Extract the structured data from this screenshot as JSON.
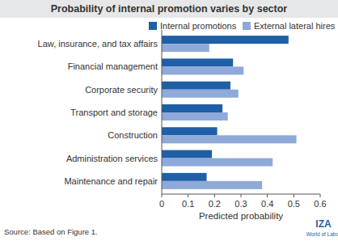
{
  "chart_data": {
    "type": "bar",
    "orientation": "horizontal",
    "title": "Probability of internal promotion varies by sector",
    "categories": [
      "Law, insurance, and tax affairs",
      "Financial management",
      "Corporate security",
      "Transport and storage",
      "Construction",
      "Administration services",
      "Maintenance and repair"
    ],
    "series": [
      {
        "name": "Internal promotions",
        "color": "#1f5fa6",
        "values": [
          0.48,
          0.27,
          0.26,
          0.23,
          0.21,
          0.19,
          0.17
        ]
      },
      {
        "name": "External lateral hires",
        "color": "#8fa9d9",
        "values": [
          0.18,
          0.31,
          0.29,
          0.25,
          0.51,
          0.42,
          0.38
        ]
      }
    ],
    "xlabel": "Predicted probability",
    "xlim": [
      0,
      0.6
    ],
    "xticks": [
      0,
      0.1,
      0.2,
      0.3,
      0.4,
      0.5,
      0.6
    ],
    "grid": false,
    "legend": "top",
    "annotations": [
      "Source: Based on Figure 1.",
      "IZA",
      "World of Labor"
    ]
  }
}
